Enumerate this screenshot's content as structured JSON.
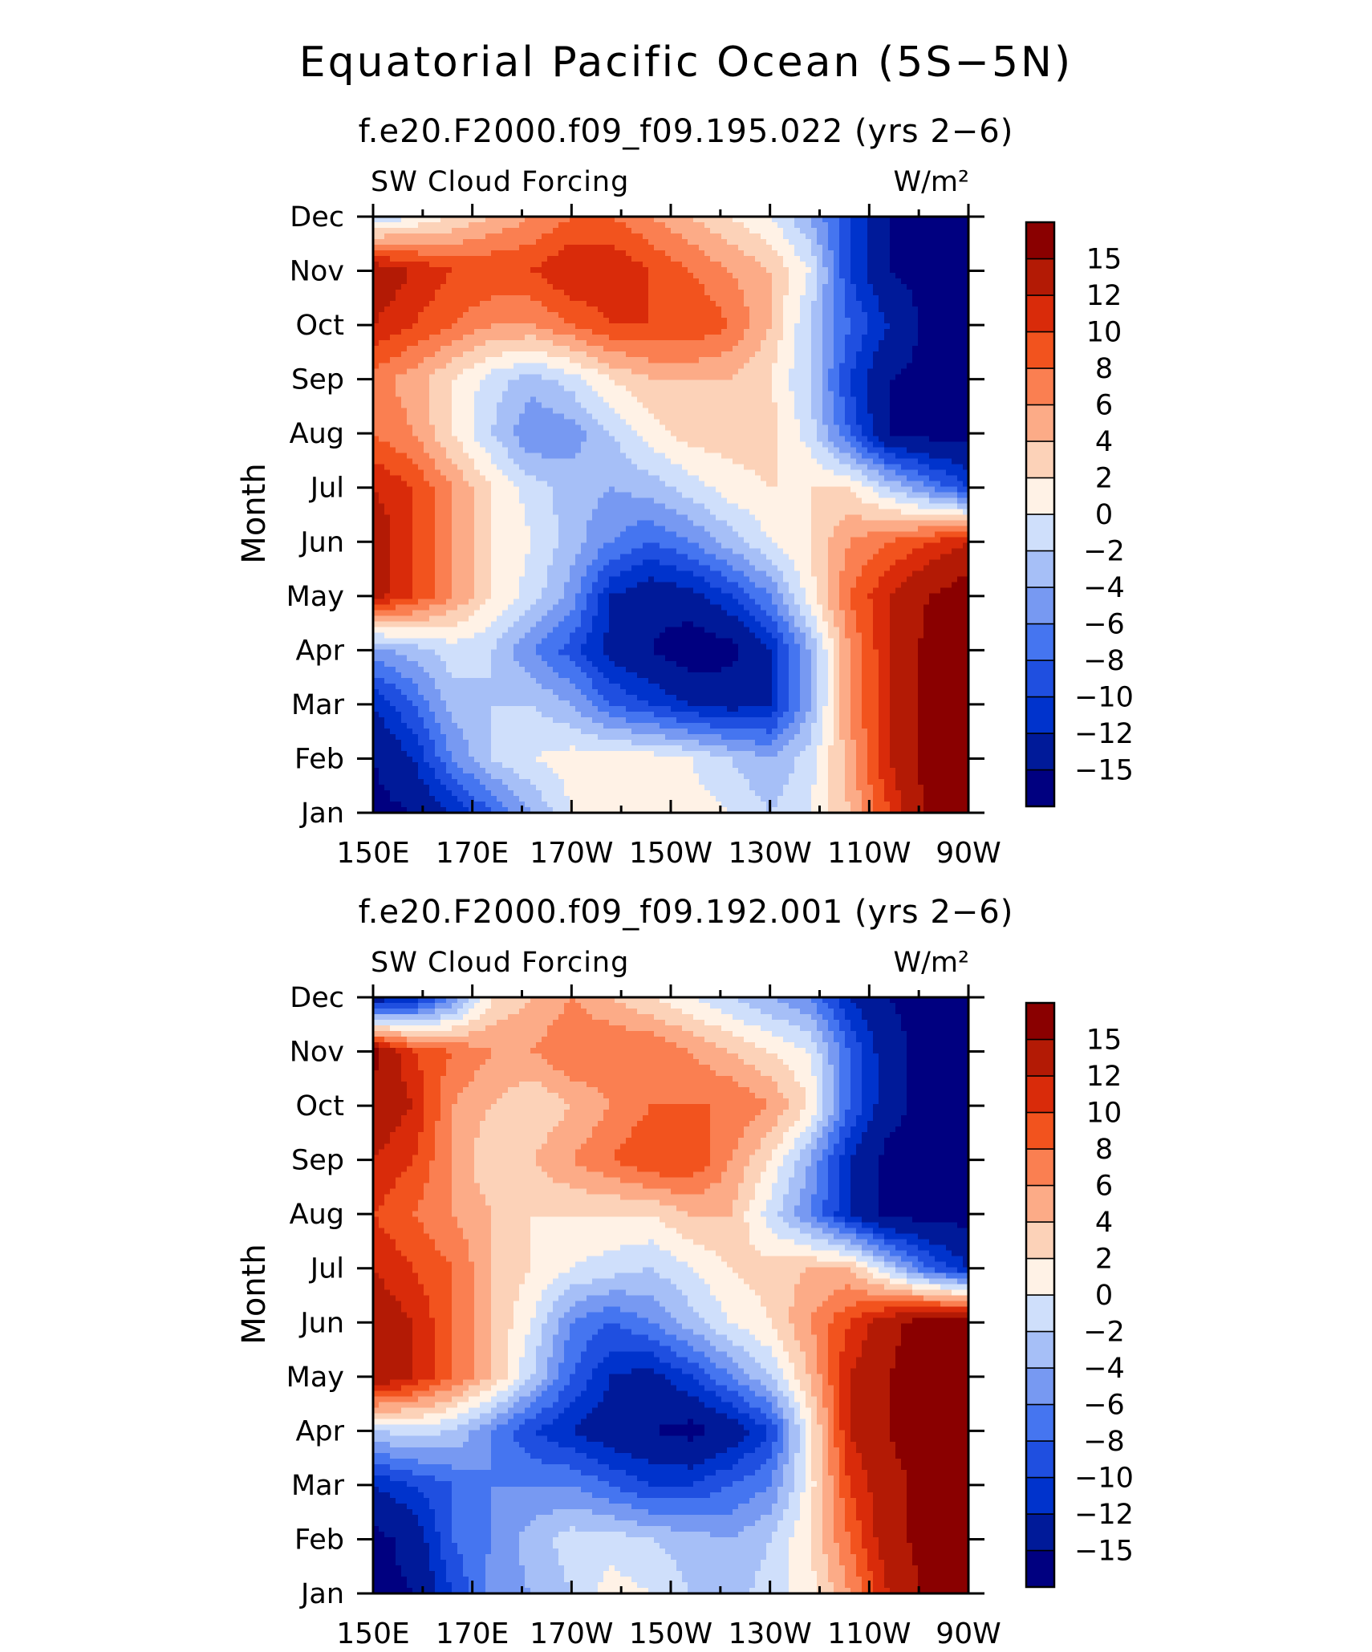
{
  "figure": {
    "title": "Equatorial Pacific Ocean (5S−5N)"
  },
  "colors": {
    "levels": [
      "#000080",
      "#001a99",
      "#0033cc",
      "#1f4fe0",
      "#4575f0",
      "#7799f2",
      "#a6bff7",
      "#cfdffb",
      "#fff2e6",
      "#fcd2b8",
      "#fcab87",
      "#fa7f51",
      "#f2531e",
      "#d92b0a",
      "#b31a05",
      "#8a0000"
    ],
    "axis": "#000000"
  },
  "chart_data": [
    {
      "type": "heatmap",
      "subtitle": "f.e20.F2000.f09_f09.195.022 (yrs 2−6)",
      "left_label": "SW Cloud Forcing",
      "right_label": "W/m²",
      "ylabel": "Month",
      "x_ticks": [
        "150E",
        "170E",
        "170W",
        "150W",
        "130W",
        "110W",
        "90W"
      ],
      "y_ticks": [
        "Jan",
        "Feb",
        "Mar",
        "Apr",
        "May",
        "Jun",
        "Jul",
        "Aug",
        "Sep",
        "Oct",
        "Nov",
        "Dec"
      ],
      "colorbar_labels": [
        "−15",
        "−12",
        "−10",
        "−8",
        "−6",
        "−4",
        "−2",
        "0",
        "2",
        "4",
        "6",
        "8",
        "10",
        "12",
        "15"
      ],
      "values": [
        [
          -16,
          -15,
          -12,
          -8,
          -4,
          0,
          1,
          1,
          1,
          0,
          -2,
          0,
          4,
          10,
          16,
          17
        ],
        [
          -15,
          -12,
          -6,
          -2,
          0,
          1,
          1,
          1,
          0,
          -2,
          -4,
          -1,
          5,
          12,
          16,
          17
        ],
        [
          -12,
          -8,
          -3,
          -2,
          -2,
          -4,
          -8,
          -10,
          -12,
          -13,
          -12,
          -4,
          6,
          12,
          16,
          17
        ],
        [
          -5,
          -3,
          -1,
          -2,
          -6,
          -9,
          -13,
          -15,
          -17,
          -16,
          -12,
          -4,
          6,
          12,
          16,
          17
        ],
        [
          13,
          10,
          6,
          2,
          -1,
          -5,
          -12,
          -14,
          -13,
          -10,
          -6,
          1,
          8,
          12,
          15,
          17
        ],
        [
          14,
          10,
          6,
          2,
          0,
          -3,
          -6,
          -8,
          -6,
          -3,
          0,
          2,
          6,
          8,
          10,
          12
        ],
        [
          12,
          10,
          6,
          2,
          -1,
          -3,
          -4,
          -3,
          -1,
          1,
          2,
          2,
          2,
          -2,
          -6,
          -10
        ],
        [
          8,
          6,
          2,
          -2,
          -6,
          -5,
          -2,
          1,
          3,
          3,
          3,
          -1,
          -8,
          -15,
          -16,
          -16
        ],
        [
          7,
          5,
          2,
          -1,
          -3,
          -1,
          2,
          4,
          4,
          4,
          2,
          -2,
          -10,
          -15,
          -16,
          -16
        ],
        [
          12,
          10,
          8,
          6,
          6,
          8,
          10,
          10,
          10,
          8,
          4,
          -2,
          -8,
          -12,
          -16,
          -16
        ],
        [
          14,
          12,
          10,
          10,
          10,
          12,
          12,
          10,
          8,
          6,
          4,
          0,
          -10,
          -15,
          -16,
          -16
        ],
        [
          -2,
          0,
          2,
          4,
          6,
          8,
          8,
          6,
          4,
          2,
          0,
          -4,
          -10,
          -15,
          -16,
          -16
        ]
      ]
    },
    {
      "type": "heatmap",
      "subtitle": "f.e20.F2000.f09_f09.192.001 (yrs 2−6)",
      "left_label": "SW Cloud Forcing",
      "right_label": "W/m²",
      "ylabel": "Month",
      "x_ticks": [
        "150E",
        "170E",
        "170W",
        "150W",
        "130W",
        "110W",
        "90W"
      ],
      "y_ticks": [
        "Jan",
        "Feb",
        "Mar",
        "Apr",
        "May",
        "Jun",
        "Jul",
        "Aug",
        "Sep",
        "Oct",
        "Nov",
        "Dec"
      ],
      "colorbar_labels": [
        "−15",
        "−12",
        "−10",
        "−8",
        "−6",
        "−4",
        "−2",
        "0",
        "2",
        "4",
        "6",
        "8",
        "10",
        "12",
        "15"
      ],
      "values": [
        [
          -16,
          -15,
          -10,
          -5,
          -4,
          -2,
          1,
          0,
          -2,
          -3,
          -1,
          1,
          6,
          12,
          16,
          17
        ],
        [
          -16,
          -14,
          -8,
          -6,
          -3,
          -1,
          -1,
          -2,
          -3,
          -4,
          -2,
          2,
          8,
          14,
          16,
          17
        ],
        [
          -12,
          -10,
          -8,
          -6,
          -6,
          -6,
          -8,
          -10,
          -10,
          -8,
          -6,
          1,
          10,
          14,
          16,
          17
        ],
        [
          -2,
          -1,
          -2,
          -6,
          -10,
          -12,
          -14,
          -15,
          -16,
          -14,
          -10,
          1,
          12,
          15,
          17,
          17
        ],
        [
          15,
          12,
          8,
          4,
          -2,
          -8,
          -12,
          -13,
          -10,
          -6,
          -2,
          4,
          12,
          15,
          17,
          17
        ],
        [
          14,
          12,
          8,
          4,
          0,
          -6,
          -8,
          -6,
          -3,
          0,
          2,
          6,
          10,
          14,
          17,
          17
        ],
        [
          12,
          10,
          8,
          4,
          2,
          0,
          -1,
          -2,
          0,
          2,
          3,
          4,
          4,
          -2,
          -8,
          -12
        ],
        [
          10,
          8,
          6,
          4,
          2,
          2,
          2,
          2,
          4,
          4,
          -1,
          -6,
          -12,
          -16,
          -16,
          -16
        ],
        [
          12,
          10,
          6,
          2,
          4,
          6,
          8,
          10,
          10,
          6,
          2,
          -4,
          -12,
          -16,
          -16,
          -16
        ],
        [
          14,
          12,
          6,
          4,
          2,
          4,
          6,
          8,
          8,
          8,
          6,
          2,
          -8,
          -14,
          -16,
          -16
        ],
        [
          16,
          10,
          8,
          6,
          6,
          8,
          8,
          8,
          6,
          4,
          2,
          0,
          -8,
          -14,
          -16,
          -16
        ],
        [
          -14,
          -12,
          -6,
          2,
          4,
          6,
          4,
          2,
          0,
          -2,
          -4,
          -6,
          -12,
          -15,
          -16,
          -16
        ]
      ]
    }
  ]
}
